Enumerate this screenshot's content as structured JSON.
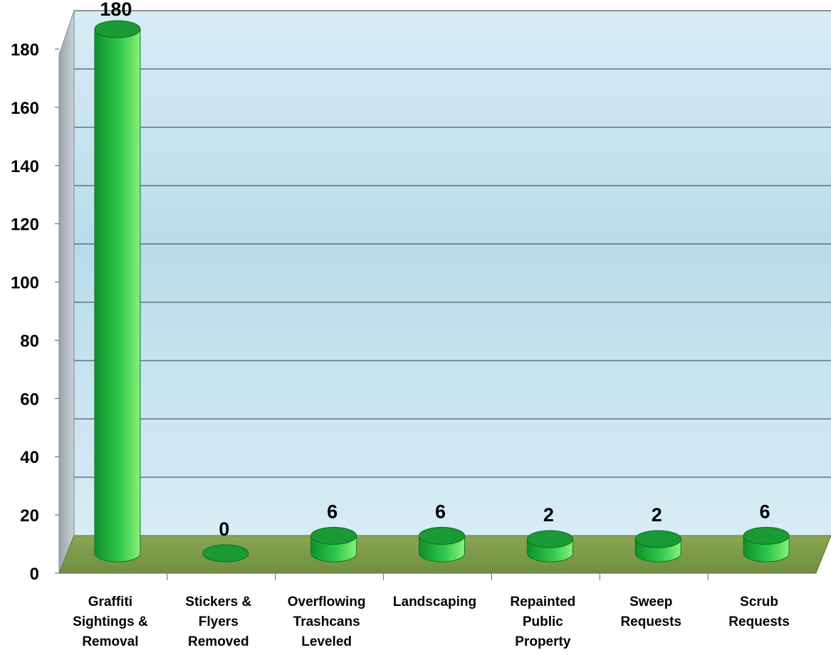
{
  "chart_data": {
    "type": "bar",
    "title": "",
    "xlabel": "",
    "ylabel": "",
    "ylim": [
      0,
      180
    ],
    "yticks": [
      0,
      20,
      40,
      60,
      80,
      100,
      120,
      140,
      160,
      180
    ],
    "grid": true,
    "legend": "none",
    "categories": [
      [
        "Graffiti",
        "Sightings &",
        "Removal"
      ],
      [
        "Stickers &",
        "Flyers",
        "Removed"
      ],
      [
        "Overflowing",
        "Trashcans",
        "Leveled"
      ],
      [
        "Landscaping"
      ],
      [
        "Repainted",
        "Public",
        "Property"
      ],
      [
        "Sweep",
        "Requests"
      ],
      [
        "Scrub",
        "Requests"
      ]
    ],
    "values": [
      180,
      0,
      6,
      6,
      2,
      2,
      6
    ],
    "data_labels": [
      "180",
      "0",
      "6",
      "6",
      "2",
      "2",
      "6"
    ]
  },
  "colors": {
    "bar_dark": "#0f8f2a",
    "bar_mid": "#2ec94b",
    "bar_light": "#8af07a",
    "bar_top": "#199a35",
    "floor": "#7e9e4c",
    "back_wall_top": "#d7ecf6",
    "back_wall_mid": "#b9dcea",
    "side_wall": "#8f9aa3",
    "grid": "#4c5c66",
    "text": "#000000"
  }
}
